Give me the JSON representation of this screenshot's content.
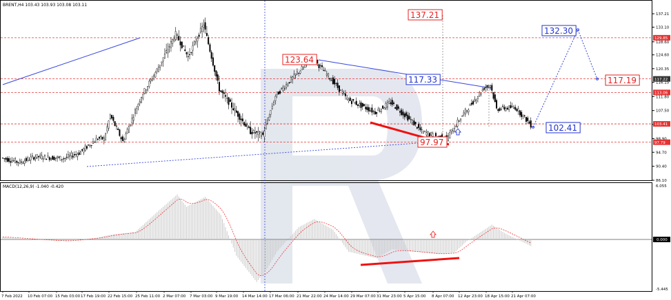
{
  "header": {
    "symbol_info": "BRENT,H4  103.43 103.93 103.08 103.11",
    "macd_info": "MACD(12,26,9) -1.040 -0.420"
  },
  "colors": {
    "bull": "#000000",
    "bear": "#000000",
    "level_red": "#e53333",
    "forecast_blue": "#3344dd",
    "trend_blue": "#3344dd",
    "divergence_red": "#ee1111",
    "macd_hist": "#c8c8c8",
    "macd_signal": "#ee3333",
    "watermark": "#dfe3ec"
  },
  "chart_data": {
    "type": "candlestick",
    "y_ticks": [
      "137.21",
      "133.10",
      "128.60",
      "124.60",
      "120.35",
      "116.15",
      "111.80",
      "107.50",
      "103.25",
      "98.90",
      "94.70",
      "90.40",
      "86.10"
    ],
    "y_range": [
      86.1,
      139.5
    ],
    "x_labels": [
      "7 Feb 2022",
      "10 Feb 07:00",
      "15 Feb 03:00",
      "17 Feb 19:00",
      "22 Feb 15:00",
      "25 Feb 11:00",
      "2 Mar 07:00",
      "7 Mar 03:00",
      "9 Mar 19:00",
      "14 Mar 14:00",
      "17 Mar 06:00",
      "21 Mar 22:00",
      "24 Mar 14:00",
      "29 Mar 07:00",
      "31 Mar 23:00",
      "5 Apr 15:00",
      "8 Apr 07:00",
      "12 Apr 23:00",
      "18 Apr 15:00",
      "21 Apr 07:00"
    ],
    "price_badges_right": [
      {
        "label": "129.85",
        "value": 129.85,
        "color": "red"
      },
      {
        "label": "117.22",
        "value": 117.22,
        "color": "dark"
      },
      {
        "label": "113.06",
        "value": 113.06,
        "color": "red"
      },
      {
        "label": "103.41",
        "value": 103.41,
        "color": "red"
      },
      {
        "label": "97.79",
        "value": 97.79,
        "color": "red"
      }
    ],
    "horizontal_levels": [
      129.85,
      117.22,
      113.06,
      103.41,
      97.79
    ],
    "annotations": [
      {
        "text": "137.21",
        "value": 137.21,
        "color": "red"
      },
      {
        "text": "123.64",
        "value": 123.64,
        "color": "red"
      },
      {
        "text": "117.33",
        "value": 117.33,
        "color": "blue"
      },
      {
        "text": "97.97",
        "value": 97.97,
        "color": "red"
      },
      {
        "text": "132.30",
        "value": 132.3,
        "color": "blue"
      },
      {
        "text": "117.19",
        "value": 117.19,
        "color": "red"
      },
      {
        "text": "102.41",
        "value": 102.41,
        "color": "blue"
      }
    ],
    "key_path": [
      {
        "bar": 0,
        "price": 93.0
      },
      {
        "bar": 12,
        "price": 91.6
      },
      {
        "bar": 22,
        "price": 93.4
      },
      {
        "bar": 40,
        "price": 92.8
      },
      {
        "bar": 50,
        "price": 94.5
      },
      {
        "bar": 62,
        "price": 99.0
      },
      {
        "bar": 66,
        "price": 98.8
      },
      {
        "bar": 70,
        "price": 106.0
      },
      {
        "bar": 78,
        "price": 98.0
      },
      {
        "bar": 90,
        "price": 112.0
      },
      {
        "bar": 100,
        "price": 120.0
      },
      {
        "bar": 112,
        "price": 131.0
      },
      {
        "bar": 120,
        "price": 124.0
      },
      {
        "bar": 130,
        "price": 134.0
      },
      {
        "bar": 140,
        "price": 114.0
      },
      {
        "bar": 160,
        "price": 101.0
      },
      {
        "bar": 168,
        "price": 100.0
      },
      {
        "bar": 176,
        "price": 112.0
      },
      {
        "bar": 190,
        "price": 119.0
      },
      {
        "bar": 200,
        "price": 123.5
      },
      {
        "bar": 212,
        "price": 117.0
      },
      {
        "bar": 222,
        "price": 111.0
      },
      {
        "bar": 240,
        "price": 107.0
      },
      {
        "bar": 250,
        "price": 110.0
      },
      {
        "bar": 264,
        "price": 104.0
      },
      {
        "bar": 270,
        "price": 101.0
      },
      {
        "bar": 280,
        "price": 99.5
      },
      {
        "bar": 286,
        "price": 99.0
      },
      {
        "bar": 296,
        "price": 106.0
      },
      {
        "bar": 310,
        "price": 114.5
      },
      {
        "bar": 314,
        "price": 115.5
      },
      {
        "bar": 318,
        "price": 108.0
      },
      {
        "bar": 330,
        "price": 108.5
      },
      {
        "bar": 340,
        "price": 103.1
      }
    ],
    "forecast_path": [
      {
        "x": 773,
        "price": 102.41
      },
      {
        "x": 838,
        "price": 132.3
      },
      {
        "x": 866,
        "price": 117.19
      }
    ],
    "macd": {
      "y_ticks": [
        "6.055",
        "0.000",
        "-5.445"
      ],
      "range": [
        -5.445,
        6.055
      ]
    }
  }
}
